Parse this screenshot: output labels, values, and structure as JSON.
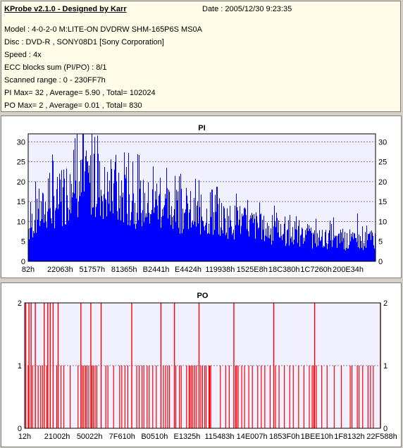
{
  "info": {
    "title": "KProbe v2.1.0 - Designed by Karr",
    "date": "Date : 2005/12/30 9:23:35",
    "lines": [
      "Model : 4-0-2-0 M:LITE-ON DVDRW SHM-165P6S MS0A",
      "Disc : DVD-R , SONY08D1 [Sony Corporation]",
      "Speed : 4x",
      "ECC blocks sum (PI/PO) : 8/1",
      "Scanned range : 0 - 230FF7h",
      "PI Max= 32 , Average= 5.90 , Total= 102024",
      "PO Max= 2 , Average= 0.01 , Total= 830"
    ]
  },
  "colors": {
    "pi": "#0000ff",
    "po": "#ff0000",
    "plot_bg": "#f0f0ff",
    "grid": "#8080a0"
  },
  "chart_data": [
    {
      "type": "bar",
      "title": "PI",
      "ylim": [
        0,
        32
      ],
      "yticks": [
        0,
        5,
        10,
        15,
        20,
        25,
        30
      ],
      "xticks": [
        "82h",
        "22063h",
        "51757h",
        "81365h",
        "B2441h",
        "E4424h",
        "119938h",
        "1525E8h",
        "18C380h",
        "1C7260h",
        "200E34h"
      ],
      "grid": true,
      "profile": [
        [
          0,
          10
        ],
        [
          2,
          13
        ],
        [
          4,
          15
        ],
        [
          6,
          17
        ],
        [
          8,
          18
        ],
        [
          10,
          19
        ],
        [
          12,
          21
        ],
        [
          14,
          22
        ],
        [
          16,
          23
        ],
        [
          18,
          24
        ],
        [
          20,
          23
        ],
        [
          22,
          21
        ],
        [
          24,
          20
        ],
        [
          26,
          19
        ],
        [
          28,
          19
        ],
        [
          30,
          18
        ],
        [
          32,
          18
        ],
        [
          35,
          17
        ],
        [
          38,
          17
        ],
        [
          40,
          16
        ],
        [
          45,
          15
        ],
        [
          50,
          14
        ],
        [
          55,
          13
        ],
        [
          60,
          12
        ],
        [
          65,
          11
        ],
        [
          70,
          9
        ],
        [
          75,
          8
        ],
        [
          80,
          7
        ],
        [
          85,
          7
        ],
        [
          90,
          6
        ],
        [
          95,
          6
        ],
        [
          100,
          7
        ]
      ],
      "peaks": [
        [
          14,
          32
        ],
        [
          13,
          28
        ],
        [
          19,
          27
        ],
        [
          17,
          25
        ],
        [
          25,
          25
        ],
        [
          30,
          25
        ],
        [
          44,
          22
        ],
        [
          38,
          21
        ],
        [
          53,
          18
        ],
        [
          60,
          17
        ],
        [
          71,
          14
        ],
        [
          88,
          11
        ],
        [
          95,
          12
        ]
      ],
      "max": 32,
      "average": 5.9
    },
    {
      "type": "bar",
      "title": "PO",
      "ylim": [
        0,
        2
      ],
      "yticks": [
        0,
        1,
        2
      ],
      "xticks": [
        "12h",
        "21002h",
        "50022h",
        "7F610h",
        "B0510h",
        "E1325h",
        "115483h",
        "14E007h",
        "1853F0h",
        "1BEE10h",
        "1F8132h",
        "22F588h"
      ],
      "grid": true,
      "spikes2": [
        0.3,
        1.2,
        1.8,
        3.0,
        5.5,
        6.5,
        7.2,
        8.0,
        9.4,
        15.8,
        18.6,
        21.5,
        30.1,
        38.3,
        42.1,
        49.0,
        58.8,
        70.0,
        81.5,
        100.0
      ],
      "spikes1": [
        1.0,
        2.2,
        3.8,
        4.5,
        5.0,
        6.2,
        9.0,
        10.2,
        11.0,
        12.8,
        15.0,
        16.2,
        16.6,
        17.1,
        17.5,
        18.0,
        18.9,
        19.3,
        19.8,
        20.3,
        22.8,
        23.4,
        25.0,
        26.7,
        27.3,
        28.2,
        29.0,
        31.5,
        32.2,
        33.0,
        33.5,
        34.4,
        35.0,
        36.0,
        37.0,
        39.0,
        39.6,
        40.2,
        40.7,
        42.5,
        43.5,
        44.0,
        45.5,
        46.2,
        46.5,
        46.9,
        47.3,
        47.8,
        48.3,
        49.5,
        50.0,
        50.6,
        51.0,
        51.8,
        52.0,
        52.3,
        55.0,
        56.5,
        57.5,
        59.3,
        59.6,
        60.0,
        61.0,
        61.8,
        63.0,
        64.0,
        65.5,
        66.5,
        67.5,
        69.0,
        70.5,
        71.5,
        73.0,
        74.5,
        75.5,
        77.0,
        78.5,
        80.0,
        80.8,
        81.2,
        82.0,
        83.5,
        85.0,
        87.0,
        89.0,
        91.5,
        92.0,
        93.5,
        94.0,
        95.0,
        96.5,
        97.2,
        98.0
      ],
      "max": 2,
      "average": 0.01
    }
  ]
}
